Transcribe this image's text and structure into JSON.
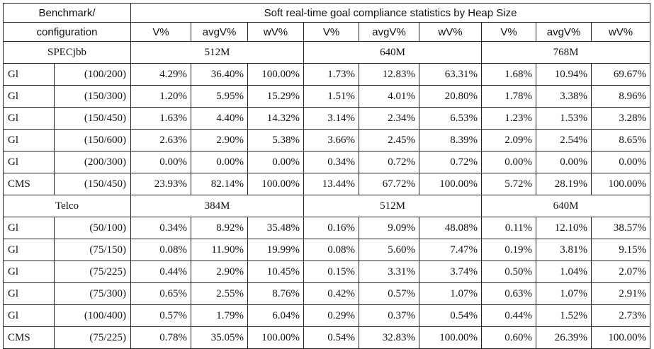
{
  "table": {
    "header_benchmark_line1": "Benchmark/",
    "header_benchmark_line2": "configuration",
    "header_title": "Soft real-time goal compliance statistics by Heap Size",
    "metrics": [
      "V%",
      "avgV%",
      "wV%",
      "V%",
      "avgV%",
      "wV%",
      "V%",
      "avgV%",
      "wV%"
    ],
    "sections": [
      {
        "name": "SPECjbb",
        "heaps": [
          "512M",
          "640M",
          "768M"
        ],
        "rows": [
          {
            "gc": "Gl",
            "config": "(100/200)",
            "values": [
              "4.29%",
              "36.40%",
              "100.00%",
              "1.73%",
              "12.83%",
              "63.31%",
              "1.68%",
              "10.94%",
              "69.67%"
            ]
          },
          {
            "gc": "Gl",
            "config": "(150/300)",
            "values": [
              "1.20%",
              "5.95%",
              "15.29%",
              "1.51%",
              "4.01%",
              "20.80%",
              "1.78%",
              "3.38%",
              "8.96%"
            ]
          },
          {
            "gc": "Gl",
            "config": "(150/450)",
            "values": [
              "1.63%",
              "4.40%",
              "14.32%",
              "3.14%",
              "2.34%",
              "6.53%",
              "1.23%",
              "1.53%",
              "3.28%"
            ]
          },
          {
            "gc": "Gl",
            "config": "(150/600)",
            "values": [
              "2.63%",
              "2.90%",
              "5.38%",
              "3.66%",
              "2.45%",
              "8.39%",
              "2.09%",
              "2.54%",
              "8.65%"
            ]
          },
          {
            "gc": "Gl",
            "config": "(200/300)",
            "values": [
              "0.00%",
              "0.00%",
              "0.00%",
              "0.34%",
              "0.72%",
              "0.72%",
              "0.00%",
              "0.00%",
              "0.00%"
            ]
          },
          {
            "gc": "CMS",
            "config": "(150/450)",
            "values": [
              "23.93%",
              "82.14%",
              "100.00%",
              "13.44%",
              "67.72%",
              "100.00%",
              "5.72%",
              "28.19%",
              "100.00%"
            ]
          }
        ]
      },
      {
        "name": "Telco",
        "heaps": [
          "384M",
          "512M",
          "640M"
        ],
        "rows": [
          {
            "gc": "Gl",
            "config": "(50/100)",
            "values": [
              "0.34%",
              "8.92%",
              "35.48%",
              "0.16%",
              "9.09%",
              "48.08%",
              "0.11%",
              "12.10%",
              "38.57%"
            ]
          },
          {
            "gc": "Gl",
            "config": "(75/150)",
            "values": [
              "0.08%",
              "11.90%",
              "19.99%",
              "0.08%",
              "5.60%",
              "7.47%",
              "0.19%",
              "3.81%",
              "9.15%"
            ]
          },
          {
            "gc": "Gl",
            "config": "(75/225)",
            "values": [
              "0.44%",
              "2.90%",
              "10.45%",
              "0.15%",
              "3.31%",
              "3.74%",
              "0.50%",
              "1.04%",
              "2.07%"
            ]
          },
          {
            "gc": "Gl",
            "config": "(75/300)",
            "values": [
              "0.65%",
              "2.55%",
              "8.76%",
              "0.42%",
              "0.57%",
              "1.07%",
              "0.63%",
              "1.07%",
              "2.91%"
            ]
          },
          {
            "gc": "Gl",
            "config": "(100/400)",
            "values": [
              "0.57%",
              "1.79%",
              "6.04%",
              "0.29%",
              "0.37%",
              "0.54%",
              "0.44%",
              "1.52%",
              "2.73%"
            ]
          },
          {
            "gc": "CMS",
            "config": "(75/225)",
            "values": [
              "0.78%",
              "35.05%",
              "100.00%",
              "0.54%",
              "32.83%",
              "100.00%",
              "0.60%",
              "26.39%",
              "100.00%"
            ]
          }
        ]
      }
    ]
  }
}
